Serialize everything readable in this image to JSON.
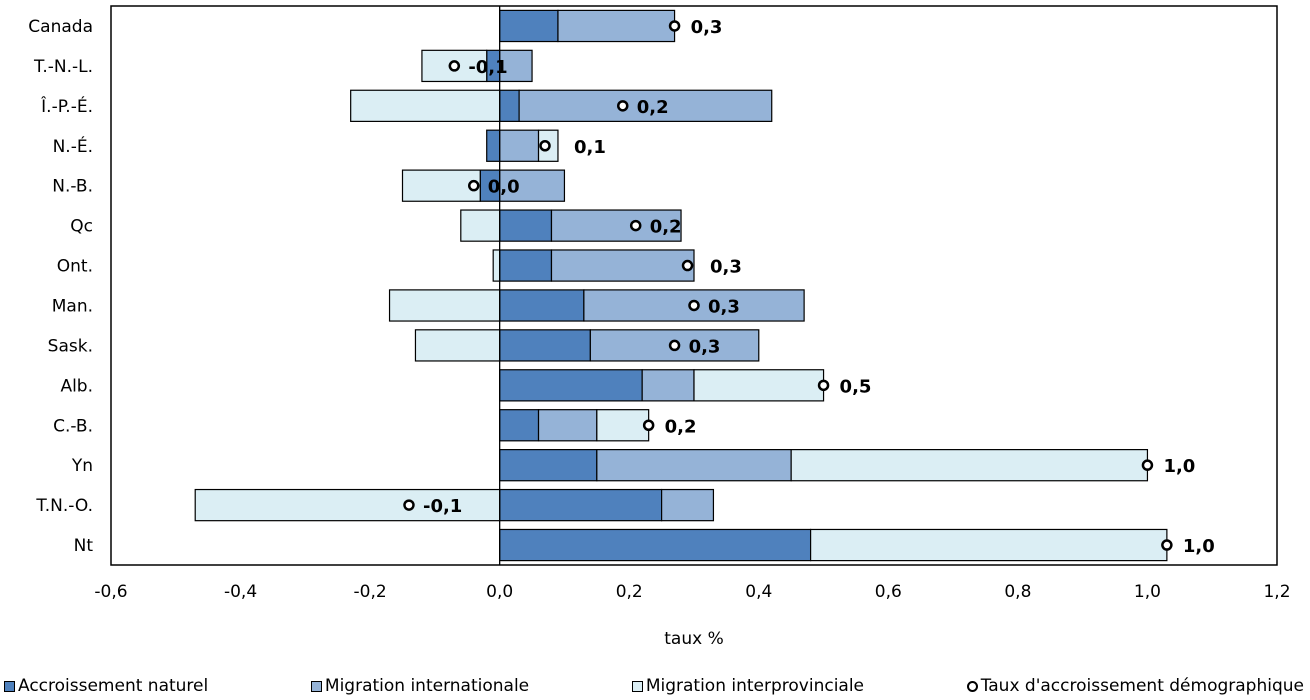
{
  "chart_data": {
    "type": "bar",
    "orientation": "horizontal",
    "stacked": true,
    "xlabel": "taux %",
    "xlim": [
      -0.6,
      1.2
    ],
    "xticks": [
      "-0,6",
      "-0,4",
      "-0,2",
      "0,0",
      "0,2",
      "0,4",
      "0,6",
      "0,8",
      "1,0",
      "1,2"
    ],
    "grid": false,
    "legend_position": "bottom",
    "categories": [
      "Canada",
      "T.-N.-L.",
      "Î.-P.-É.",
      "N.-É.",
      "N.-B.",
      "Qc",
      "Ont.",
      "Man.",
      "Sask.",
      "Alb.",
      "C.-B.",
      "Yn",
      "T.N.-O.",
      "Nt"
    ],
    "series": [
      {
        "name": "Accroissement naturel",
        "color": "#4f81bd",
        "values": [
          0.09,
          -0.02,
          0.03,
          -0.02,
          -0.03,
          0.08,
          0.08,
          0.13,
          0.14,
          0.22,
          0.06,
          0.15,
          0.25,
          0.48
        ]
      },
      {
        "name": "Migration internationale",
        "color": "#95b3d7",
        "values": [
          0.18,
          0.05,
          0.39,
          0.06,
          0.1,
          0.2,
          0.22,
          0.34,
          0.26,
          0.08,
          0.09,
          0.3,
          0.08,
          0.0
        ]
      },
      {
        "name": "Migration interprovinciale",
        "color": "#dbeef4",
        "values": [
          0.0,
          -0.1,
          -0.23,
          0.03,
          -0.12,
          -0.06,
          -0.01,
          -0.17,
          -0.13,
          0.2,
          0.08,
          0.55,
          -0.47,
          0.55
        ]
      }
    ],
    "markers": {
      "name": "Taux d'accroissement démographique",
      "values": [
        0.27,
        -0.07,
        0.19,
        0.07,
        -0.04,
        0.21,
        0.29,
        0.3,
        0.27,
        0.5,
        0.23,
        1.0,
        -0.14,
        1.03
      ],
      "labels": [
        "0,3",
        "-0,1",
        "0,2",
        "0,1",
        "0,0",
        "0,2",
        "0,3",
        "0,3",
        "0,3",
        "0,5",
        "0,2",
        "1,0",
        "-0,1",
        "1,0"
      ]
    }
  },
  "legend": {
    "natural": "Accroissement naturel",
    "international": "Migration internationale",
    "interprovincial": "Migration interprovinciale",
    "rate": "Taux d'accroissement démographique"
  }
}
